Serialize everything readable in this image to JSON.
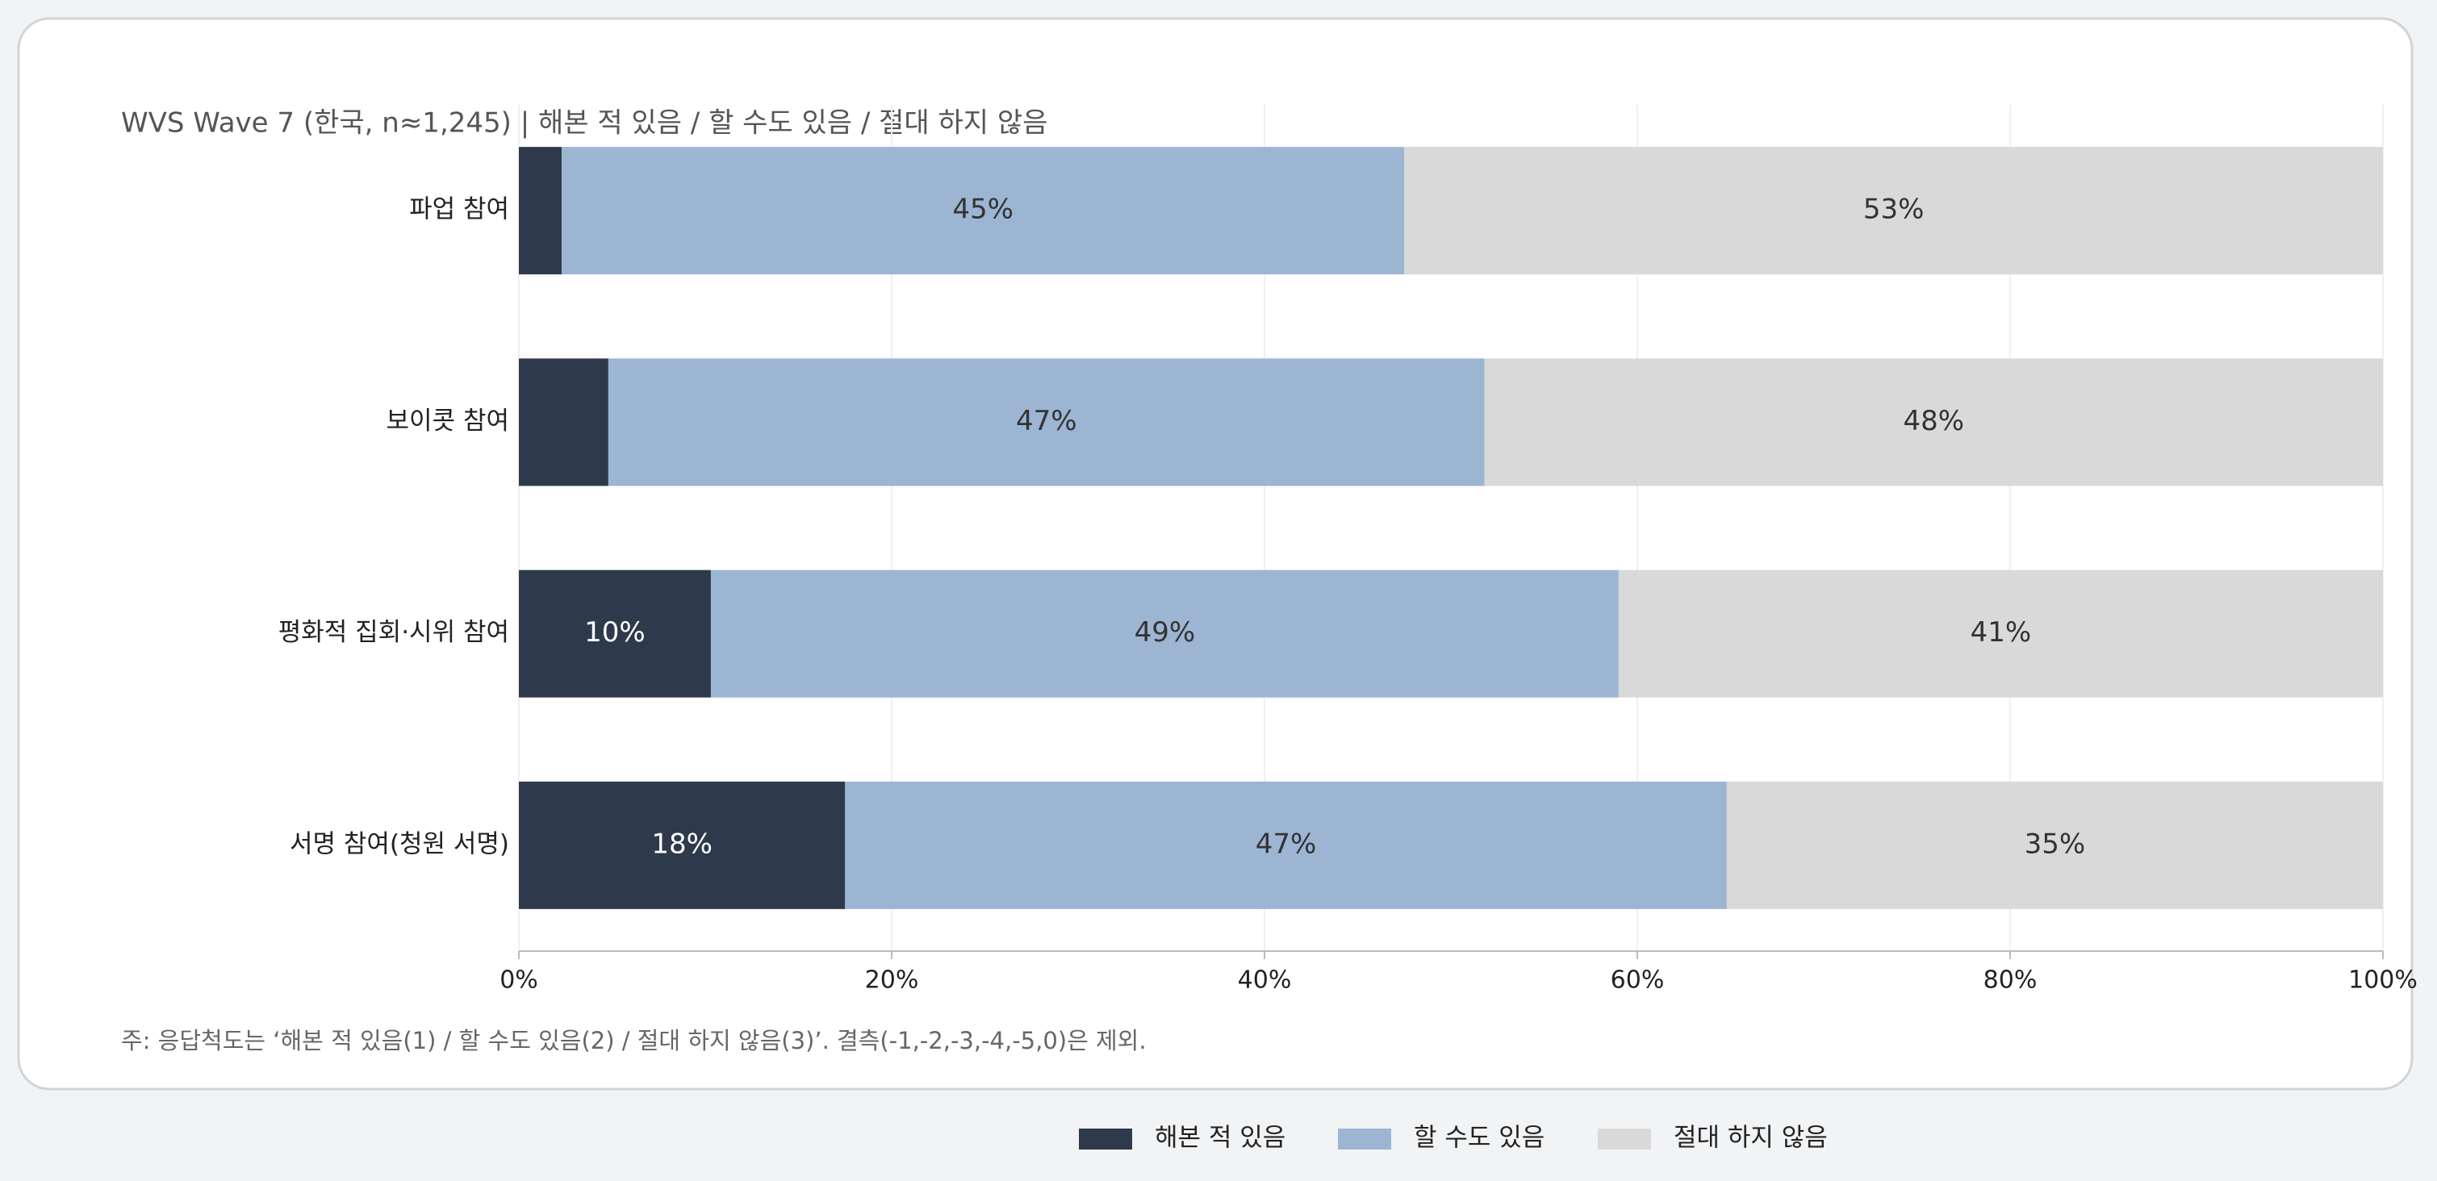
{
  "chart_data": {
    "type": "stacked-bar-horizontal",
    "title": "WVS Wave 7 (한국, n≈1,245) | 해본 적 있음 / 할 수도 있음 / 절대 하지 않음",
    "note": "주: 응답척도는 ‘해본 적 있음(1) / 할 수도 있음(2) / 절대 하지 않음(3)’. 결측(-1,-2,-3,-4,-5,0)은 제외.",
    "categories": [
      "파업 참여",
      "보이콧 참여",
      "평화적 집회·시위 참여",
      "서명 참여(청원 서명)"
    ],
    "series": [
      {
        "name": "해본 적 있음",
        "color": "#2e3a4b",
        "values": [
          2.3,
          4.8,
          10.3,
          17.5
        ],
        "value_labels": [
          null,
          null,
          "10%",
          "18%"
        ]
      },
      {
        "name": "할 수도 있음",
        "color": "#9cb5d3",
        "values": [
          45.2,
          47.0,
          48.7,
          47.3
        ],
        "value_labels": [
          "45%",
          "47%",
          "49%",
          "47%"
        ]
      },
      {
        "name": "절대 하지 않음",
        "color": "#d9d9d9",
        "values": [
          52.5,
          48.2,
          41.0,
          35.2
        ],
        "value_labels": [
          "53%",
          "48%",
          "41%",
          "35%"
        ]
      }
    ],
    "xlim": [
      0,
      100
    ],
    "xticks": [
      {
        "value": 0,
        "label": "0%"
      },
      {
        "value": 20,
        "label": "20%"
      },
      {
        "value": 40,
        "label": "40%"
      },
      {
        "value": 60,
        "label": "60%"
      },
      {
        "value": 80,
        "label": "80%"
      },
      {
        "value": 100,
        "label": "100%"
      }
    ],
    "grid": true,
    "legend": "bottom"
  }
}
